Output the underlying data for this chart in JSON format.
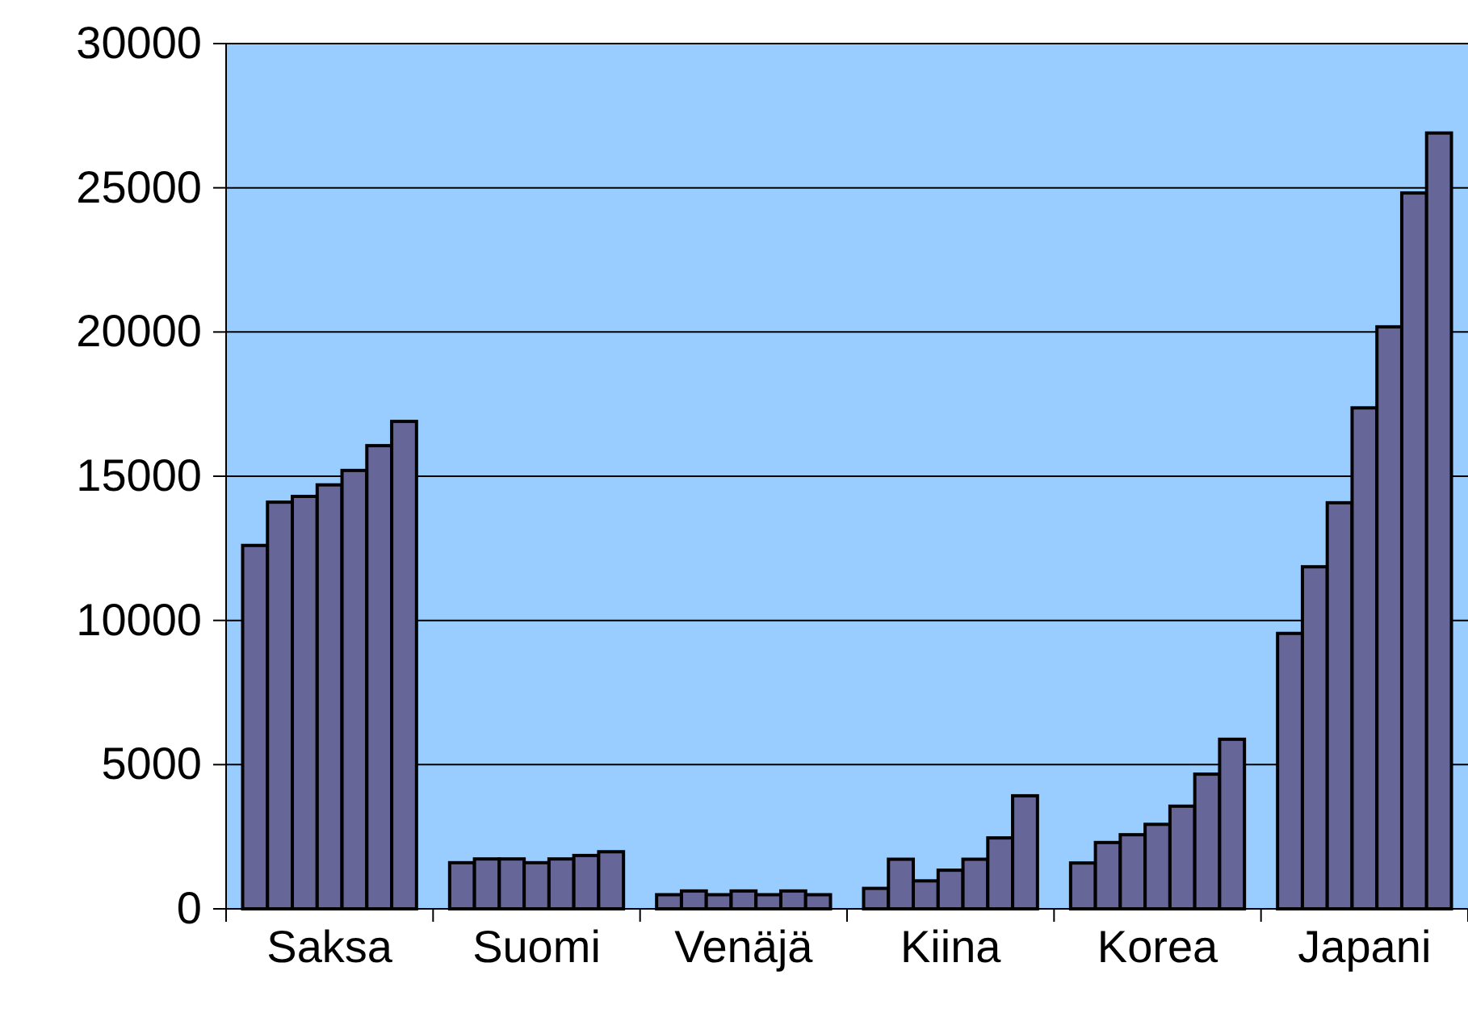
{
  "chart_data": {
    "type": "bar",
    "categories": [
      "Saksa",
      "Suomi",
      "Venäjä",
      "Kiina",
      "Korea",
      "Japani"
    ],
    "series": [
      {
        "color": "#666699",
        "values": [
          12600,
          1600,
          490,
          710,
          1590,
          9550
        ]
      },
      {
        "color": "#666699",
        "values": [
          14100,
          1730,
          620,
          1720,
          2300,
          11860
        ]
      },
      {
        "color": "#666699",
        "values": [
          14300,
          1730,
          490,
          970,
          2570,
          14080
        ]
      },
      {
        "color": "#666699",
        "values": [
          14700,
          1600,
          620,
          1340,
          2930,
          17370
        ]
      },
      {
        "color": "#666699",
        "values": [
          15200,
          1730,
          490,
          1720,
          3560,
          20180
        ]
      },
      {
        "color": "#666699",
        "values": [
          16060,
          1850,
          620,
          2460,
          4670,
          24820
        ]
      },
      {
        "color": "#666699",
        "values": [
          16900,
          1980,
          490,
          3920,
          5880,
          26900
        ]
      }
    ],
    "ylim": [
      0,
      30000
    ],
    "yticks": [
      0,
      5000,
      10000,
      15000,
      20000,
      25000,
      30000
    ],
    "grid": "y"
  }
}
